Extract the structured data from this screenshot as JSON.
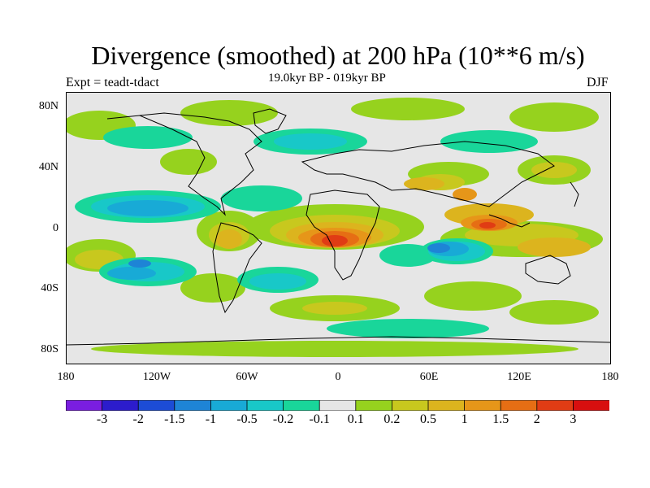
{
  "header": {
    "title": "Divergence (smoothed) at 200 hPa (10**6 m/s)",
    "subtitle": "19.0kyr BP - 019kyr BP",
    "expt": "Expt = teadt-tdact",
    "season": "DJF"
  },
  "axes": {
    "lat_labels": [
      "80N",
      "40N",
      "0",
      "40S",
      "80S"
    ],
    "lon_labels": [
      "180",
      "120W",
      "60W",
      "0",
      "60E",
      "120E",
      "180"
    ]
  },
  "colorbar": {
    "colors": [
      "#7a1ee0",
      "#2c1ccc",
      "#1c4cd6",
      "#1e84d6",
      "#18aad6",
      "#18c8c8",
      "#19d69a",
      "#e6e6e6",
      "#96d21e",
      "#c8c81e",
      "#dcb41e",
      "#e69619",
      "#e66e14",
      "#e03c14",
      "#d80f0f"
    ],
    "labels": [
      "-3",
      "-2",
      "-1.5",
      "-1",
      "-0.5",
      "-0.2",
      "-0.1",
      "0.1",
      "0.2",
      "0.5",
      "1",
      "1.5",
      "2",
      "3"
    ]
  }
}
